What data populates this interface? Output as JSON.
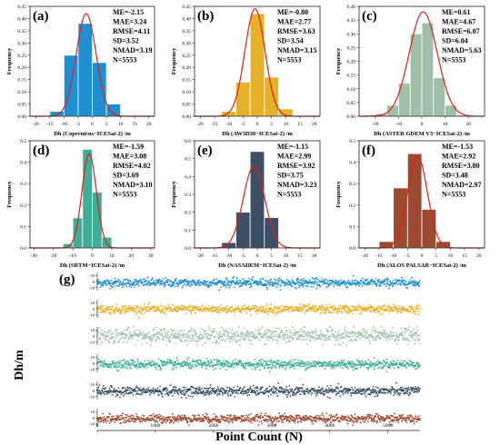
{
  "figure": {
    "ylabel_hist": "Frequency",
    "ylabel_series": "Dh/m",
    "xlabel_series": "Point Count (N)"
  },
  "chart_data": [
    {
      "id": "a",
      "type": "bar",
      "panel_label": "(a)",
      "color": "#1f8fcf",
      "xlabel": "Dh (Copernicus−ICESat-2) /m",
      "bin_edges": [
        -15,
        -10,
        -5,
        0,
        5,
        10
      ],
      "values": [
        0.02,
        0.25,
        0.38,
        0.22,
        0.05
      ],
      "fit": {
        "mean": -2.15,
        "sd": 3.52,
        "peak": 0.42
      },
      "xlim": [
        -22,
        22
      ],
      "ylim": [
        0,
        0.45
      ],
      "xticks": [
        -20,
        -15,
        -10,
        -5,
        0,
        5,
        10,
        15,
        20
      ],
      "yticks": [
        0,
        0.05,
        0.1,
        0.15,
        0.2,
        0.25,
        0.3,
        0.35,
        0.4,
        0.45
      ],
      "ytick_labels": [
        "0.00",
        "0.05",
        "0.10",
        "0.15",
        "0.20",
        "0.25",
        "0.30",
        "0.35",
        "0.40",
        "0.45"
      ],
      "stats": [
        "ME=-2.15",
        "MAE=3.24",
        "RMSE=4.11",
        "SD=3.52",
        "NMAD=3.19",
        "N=5553"
      ]
    },
    {
      "id": "b",
      "type": "bar",
      "panel_label": "(b)",
      "color": "#e6b12a",
      "xlabel": "Dh (AW3D30−ICESat-2) /m",
      "bin_edges": [
        -12.5,
        -7.5,
        -2.5,
        2.5,
        7.5,
        12.5
      ],
      "values": [
        0.02,
        0.14,
        0.42,
        0.16,
        0.03
      ],
      "fit": {
        "mean": -0.8,
        "sd": 3.54,
        "peak": 0.44
      },
      "xlim": [
        -22,
        22
      ],
      "ylim": [
        0,
        0.45
      ],
      "xticks": [
        -20,
        -15,
        -10,
        -5,
        0,
        5,
        10,
        15,
        20
      ],
      "yticks": [
        0,
        0.05,
        0.1,
        0.15,
        0.2,
        0.25,
        0.3,
        0.35,
        0.4,
        0.45
      ],
      "ytick_labels": [
        "0.00",
        "0.05",
        "0.10",
        "0.15",
        "0.20",
        "0.25",
        "0.30",
        "0.35",
        "0.40",
        "0.45"
      ],
      "stats": [
        "ME=-0.80",
        "MAE=2.77",
        "RMSE=3.63",
        "SD=3.54",
        "NMAD=3.15",
        "N=5553"
      ]
    },
    {
      "id": "c",
      "type": "bar",
      "panel_label": "(c)",
      "color": "#9fbfa9",
      "xlabel": "Dh (ASTER GDEM V3−ICESat-2) /m",
      "bin_edges": [
        -25,
        -20,
        -15,
        -10,
        -5,
        0,
        5,
        10,
        15,
        20
      ],
      "values": [
        0.005,
        0.01,
        0.04,
        0.12,
        0.3,
        0.34,
        0.14,
        0.04,
        0.005
      ],
      "fit": {
        "mean": 0.61,
        "sd": 6.04,
        "peak": 0.38
      },
      "xlim": [
        -27,
        27
      ],
      "ylim": [
        0,
        0.4
      ],
      "xticks": [
        -20,
        -10,
        0,
        10,
        20
      ],
      "yticks": [
        0,
        0.05,
        0.1,
        0.15,
        0.2,
        0.25,
        0.3,
        0.35,
        0.4
      ],
      "ytick_labels": [
        "0.00",
        "0.05",
        "0.10",
        "0.15",
        "0.20",
        "0.25",
        "0.30",
        "0.35",
        "0.40"
      ],
      "stats": [
        "ME=0.61",
        "MAE=4.67",
        "RMSE=6.07",
        "SD=6.04",
        "NMAD=5.63",
        "N=5553"
      ]
    },
    {
      "id": "d",
      "type": "bar",
      "panel_label": "(d)",
      "color": "#3fae97",
      "xlabel": "Dh (SRTM−ICESat-2) /m",
      "bin_edges": [
        -15,
        -10,
        -5,
        0,
        5,
        10
      ],
      "values": [
        0.02,
        0.14,
        0.46,
        0.26,
        0.05
      ],
      "fit": {
        "mean": -1.59,
        "sd": 3.69,
        "peak": 0.44
      },
      "xlim": [
        -32,
        32
      ],
      "ylim": [
        0,
        0.5
      ],
      "xticks": [
        -30,
        -20,
        -10,
        0,
        10,
        20,
        30
      ],
      "yticks": [
        0,
        0.1,
        0.2,
        0.3,
        0.4,
        0.5
      ],
      "ytick_labels": [
        "0.0",
        "0.1",
        "0.2",
        "0.3",
        "0.4",
        "0.5"
      ],
      "stats": [
        "ME=-1.59",
        "MAE=3.08",
        "RMSE=4.02",
        "SD=3.69",
        "NMAD=3.10",
        "N=5553"
      ]
    },
    {
      "id": "e",
      "type": "bar",
      "panel_label": "(e)",
      "color": "#3d4f66",
      "xlabel": "Dh (NASADEM−ICESat-2) /m",
      "bin_edges": [
        -12.5,
        -7.5,
        -2.5,
        2.5,
        7.5
      ],
      "values": [
        0.03,
        0.2,
        0.54,
        0.17
      ],
      "fit": {
        "mean": -1.15,
        "sd": 3.75,
        "peak": 0.46
      },
      "xlim": [
        -22,
        22
      ],
      "ylim": [
        0,
        0.6
      ],
      "xticks": [
        -20,
        -15,
        -10,
        -5,
        0,
        5,
        10,
        15,
        20
      ],
      "yticks": [
        0,
        0.1,
        0.2,
        0.3,
        0.4,
        0.5,
        0.6
      ],
      "ytick_labels": [
        "0.0",
        "0.1",
        "0.2",
        "0.3",
        "0.4",
        "0.5",
        "0.6"
      ],
      "stats": [
        "ME=-1.15",
        "MAE=2.99",
        "RMSE=3.92",
        "SD=3.75",
        "NMAD=3.23",
        "N=5553"
      ]
    },
    {
      "id": "f",
      "type": "bar",
      "panel_label": "(f)",
      "color": "#9c4a30",
      "xlabel": "Dh (ALOS PALSAR−ICESat-2) /m",
      "bin_edges": [
        -15,
        -10,
        -5,
        0,
        5,
        10
      ],
      "values": [
        0.03,
        0.28,
        0.44,
        0.18,
        0.03
      ],
      "fit": {
        "mean": -1.53,
        "sd": 3.48,
        "peak": 0.43
      },
      "xlim": [
        -22,
        22
      ],
      "ylim": [
        0,
        0.5
      ],
      "xticks": [
        -20,
        -15,
        -10,
        -5,
        0,
        5,
        10,
        15,
        20
      ],
      "yticks": [
        0,
        0.1,
        0.2,
        0.3,
        0.4,
        0.5
      ],
      "ytick_labels": [
        "0.0",
        "0.1",
        "0.2",
        "0.3",
        "0.4",
        "0.5"
      ],
      "stats": [
        "ME=-1.53",
        "MAE=2.92",
        "RMSE=3.80",
        "SD=3.48",
        "NMAD=2.97",
        "N=5553"
      ]
    },
    {
      "id": "g",
      "type": "scatter",
      "panel_label": "(g)",
      "xlabel": "Point Count (N)",
      "ylabel": "Dh/m",
      "xlim": [
        0,
        5553
      ],
      "xticks": [
        0,
        1000,
        2000,
        3000,
        4000,
        5000
      ],
      "yticks": [
        10,
        0,
        -10
      ],
      "ylim": [
        -15,
        15
      ],
      "series": [
        {
          "ref": "a",
          "color": "#1f8fcf",
          "mean": -2.15,
          "sd": 3.52
        },
        {
          "ref": "b",
          "color": "#e6b12a",
          "mean": -0.8,
          "sd": 3.54
        },
        {
          "ref": "c",
          "color": "#9fbfa9",
          "mean": 0.61,
          "sd": 6.04
        },
        {
          "ref": "d",
          "color": "#3fae97",
          "mean": -1.59,
          "sd": 3.69
        },
        {
          "ref": "e",
          "color": "#3d4f66",
          "mean": -1.15,
          "sd": 3.75
        },
        {
          "ref": "f",
          "color": "#9c4a30",
          "mean": -1.53,
          "sd": 3.48
        }
      ]
    }
  ]
}
